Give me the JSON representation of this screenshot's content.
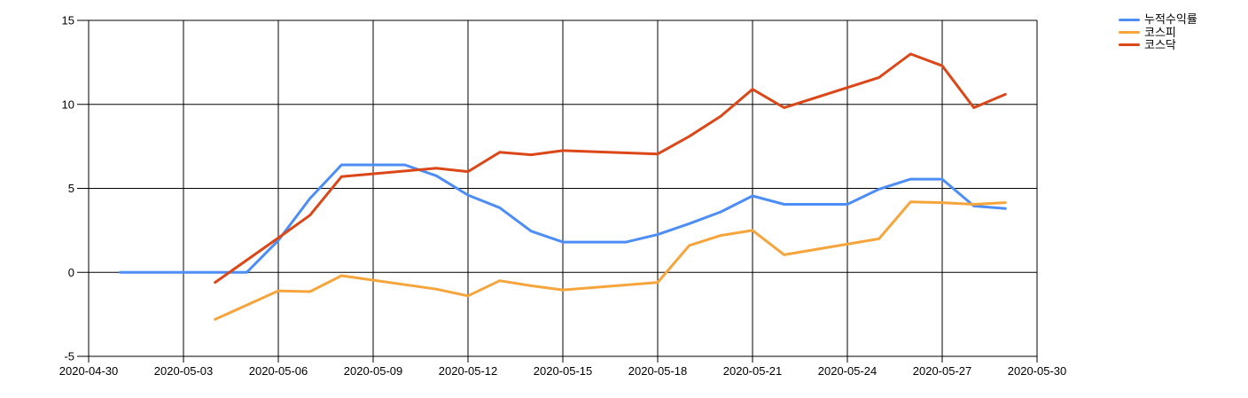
{
  "chart_data": {
    "type": "line",
    "title": "",
    "xlabel": "",
    "ylabel": "",
    "grid": true,
    "legend_position": "top-right",
    "background_color": "#ffffff",
    "grid_color": "#000000",
    "text_color": "#000000",
    "x_axis": {
      "tick_labels": [
        "2020-04-30",
        "2020-05-03",
        "2020-05-06",
        "2020-05-09",
        "2020-05-12",
        "2020-05-15",
        "2020-05-18",
        "2020-05-21",
        "2020-05-24",
        "2020-05-27",
        "2020-05-30"
      ]
    },
    "y_axis": {
      "min": -5,
      "max": 15,
      "tick_values": [
        -5,
        0,
        5,
        10,
        15
      ],
      "tick_labels": [
        "-5",
        "0",
        "5",
        "10",
        "15"
      ]
    },
    "series": [
      {
        "name": "누적수익률",
        "color": "#4d8df6",
        "points": [
          [
            "2020-05-01",
            0
          ],
          [
            "2020-05-02",
            0
          ],
          [
            "2020-05-03",
            0
          ],
          [
            "2020-05-04",
            0
          ],
          [
            "2020-05-05",
            0
          ],
          [
            "2020-05-06",
            1.9
          ],
          [
            "2020-05-07",
            4.4
          ],
          [
            "2020-05-08",
            6.4
          ],
          [
            "2020-05-09",
            6.4
          ],
          [
            "2020-05-10",
            6.4
          ],
          [
            "2020-05-11",
            5.75
          ],
          [
            "2020-05-12",
            4.6
          ],
          [
            "2020-05-13",
            3.85
          ],
          [
            "2020-05-14",
            2.45
          ],
          [
            "2020-05-15",
            1.8
          ],
          [
            "2020-05-16",
            1.8
          ],
          [
            "2020-05-17",
            1.8
          ],
          [
            "2020-05-18",
            2.25
          ],
          [
            "2020-05-19",
            2.9
          ],
          [
            "2020-05-20",
            3.6
          ],
          [
            "2020-05-21",
            4.55
          ],
          [
            "2020-05-22",
            4.05
          ],
          [
            "2020-05-23",
            4.05
          ],
          [
            "2020-05-24",
            4.05
          ],
          [
            "2020-05-25",
            4.95
          ],
          [
            "2020-05-26",
            5.55
          ],
          [
            "2020-05-27",
            5.55
          ],
          [
            "2020-05-28",
            3.95
          ],
          [
            "2020-05-29",
            3.8
          ]
        ]
      },
      {
        "name": "코스피",
        "color": "#f6a53c",
        "points": [
          [
            "2020-05-04",
            -2.8
          ],
          [
            "2020-05-06",
            -1.1
          ],
          [
            "2020-05-07",
            -1.15
          ],
          [
            "2020-05-08",
            -0.2
          ],
          [
            "2020-05-11",
            -1.0
          ],
          [
            "2020-05-12",
            -1.4
          ],
          [
            "2020-05-13",
            -0.5
          ],
          [
            "2020-05-14",
            -0.8
          ],
          [
            "2020-05-15",
            -1.05
          ],
          [
            "2020-05-18",
            -0.6
          ],
          [
            "2020-05-19",
            1.6
          ],
          [
            "2020-05-20",
            2.2
          ],
          [
            "2020-05-21",
            2.5
          ],
          [
            "2020-05-22",
            1.05
          ],
          [
            "2020-05-25",
            2.0
          ],
          [
            "2020-05-26",
            4.2
          ],
          [
            "2020-05-27",
            4.15
          ],
          [
            "2020-05-28",
            4.05
          ],
          [
            "2020-05-29",
            4.15
          ]
        ]
      },
      {
        "name": "코스닥",
        "color": "#db4718",
        "points": [
          [
            "2020-05-04",
            -0.6
          ],
          [
            "2020-05-06",
            2.05
          ],
          [
            "2020-05-07",
            3.4
          ],
          [
            "2020-05-08",
            5.7
          ],
          [
            "2020-05-11",
            6.2
          ],
          [
            "2020-05-12",
            6.0
          ],
          [
            "2020-05-13",
            7.15
          ],
          [
            "2020-05-14",
            7.0
          ],
          [
            "2020-05-15",
            7.25
          ],
          [
            "2020-05-18",
            7.05
          ],
          [
            "2020-05-19",
            8.1
          ],
          [
            "2020-05-20",
            9.3
          ],
          [
            "2020-05-21",
            10.9
          ],
          [
            "2020-05-22",
            9.8
          ],
          [
            "2020-05-25",
            11.6
          ],
          [
            "2020-05-26",
            13.0
          ],
          [
            "2020-05-27",
            12.3
          ],
          [
            "2020-05-28",
            9.8
          ],
          [
            "2020-05-29",
            10.6
          ]
        ]
      }
    ]
  }
}
